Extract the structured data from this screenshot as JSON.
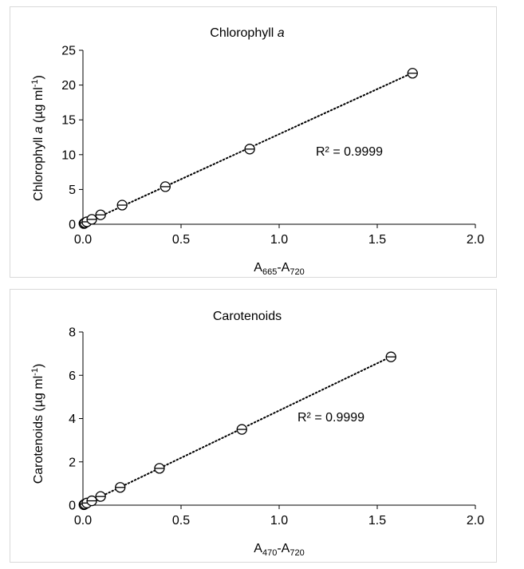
{
  "chart_data": [
    {
      "type": "scatter",
      "title": "Chlorophyll a",
      "title_parts": [
        "Chlorophyll ",
        "a"
      ],
      "xlabel": "A665-A720",
      "xlabel_parts": {
        "main1": "A",
        "sub1": "665",
        "dash": "-A",
        "sub2": "720"
      },
      "ylabel": "Chlorophyll a (µg ml-1)",
      "ylabel_parts": {
        "pre": "Chlorophyll ",
        "italic": "a",
        "mid": " (µg ml",
        "sup": "-1",
        "post": ")"
      },
      "xlim": [
        0,
        2.0
      ],
      "ylim": [
        0,
        25
      ],
      "x_ticks": [
        0.0,
        0.5,
        1.0,
        1.5,
        2.0
      ],
      "x_tick_labels": [
        "0.0",
        "0.5",
        "1.0",
        "1.5",
        "2.0"
      ],
      "y_ticks": [
        0,
        5,
        10,
        15,
        20,
        25
      ],
      "y_tick_labels": [
        "0",
        "5",
        "10",
        "15",
        "20",
        "25"
      ],
      "grid": false,
      "trendline": {
        "style": "dotted",
        "slope": 12.95,
        "intercept": 0.0,
        "x_range": [
          0.0,
          1.68
        ]
      },
      "annotation": "R² = 0.9999",
      "series": [
        {
          "marker": "circle-open",
          "x": [
            0.005,
            0.01,
            0.02,
            0.045,
            0.09,
            0.2,
            0.42,
            0.85,
            1.68
          ],
          "y": [
            0.1,
            0.2,
            0.35,
            0.7,
            1.35,
            2.75,
            5.4,
            10.8,
            21.7
          ]
        }
      ]
    },
    {
      "type": "scatter",
      "title": "Carotenoids",
      "xlabel": "A470-A720",
      "xlabel_parts": {
        "main1": "A",
        "sub1": "470",
        "dash": "-A",
        "sub2": "720"
      },
      "ylabel": "Carotenoids (µg ml-1)",
      "ylabel_parts": {
        "pre": "Carotenoids (µg ml",
        "sup": "-1",
        "post": ")"
      },
      "xlim": [
        0,
        2.0
      ],
      "ylim": [
        0,
        8
      ],
      "x_ticks": [
        0.0,
        0.5,
        1.0,
        1.5,
        2.0
      ],
      "x_tick_labels": [
        "0.0",
        "0.5",
        "1.0",
        "1.5",
        "2.0"
      ],
      "y_ticks": [
        0,
        2,
        4,
        6,
        8
      ],
      "y_tick_labels": [
        "0",
        "2",
        "4",
        "6",
        "8"
      ],
      "grid": false,
      "trendline": {
        "style": "dotted",
        "slope": 4.37,
        "intercept": 0.0,
        "x_range": [
          0.0,
          1.57
        ]
      },
      "annotation": "R² = 0.9999",
      "series": [
        {
          "marker": "circle-open",
          "x": [
            0.005,
            0.01,
            0.02,
            0.045,
            0.09,
            0.19,
            0.39,
            0.81,
            1.57
          ],
          "y": [
            0.02,
            0.05,
            0.1,
            0.2,
            0.4,
            0.82,
            1.7,
            3.5,
            6.85
          ]
        }
      ]
    }
  ]
}
